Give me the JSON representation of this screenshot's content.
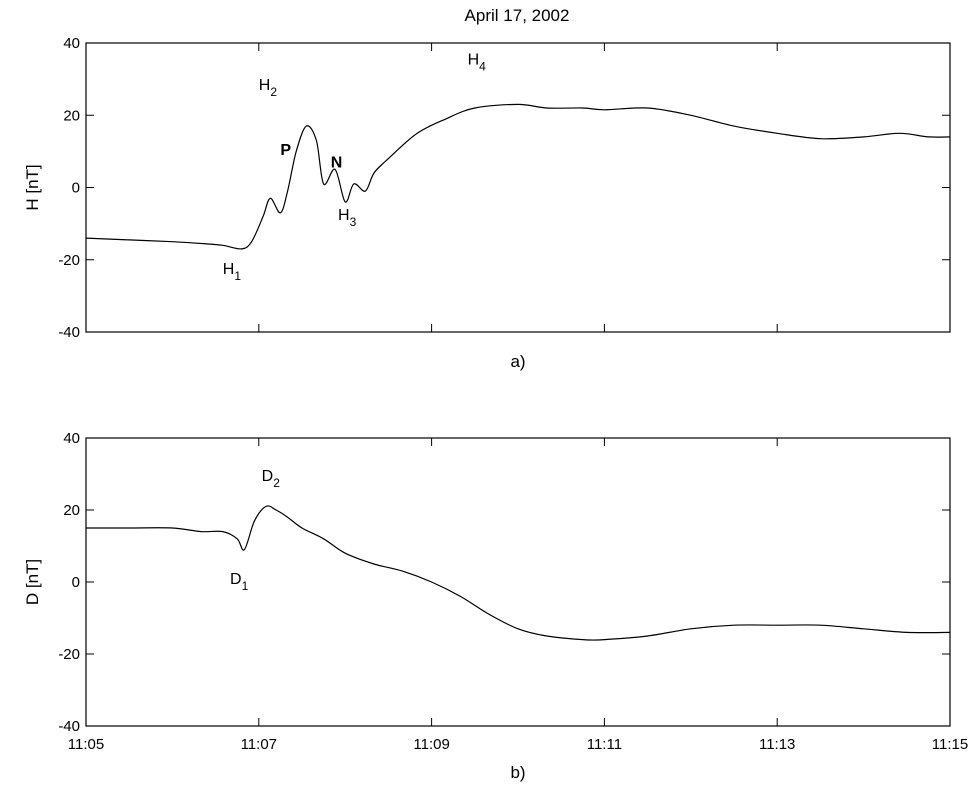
{
  "figure": {
    "title": "April 17, 2002"
  },
  "chart_data": [
    {
      "type": "line",
      "panel_label": "a)",
      "ylabel": "H [nT]",
      "ylim": [
        -40,
        40
      ],
      "yticks": [
        "40",
        "20",
        "0",
        "-20",
        "-40"
      ],
      "ytick_values": [
        40,
        20,
        0,
        -20,
        -40
      ],
      "xlim": [
        "11:05",
        "11:15"
      ],
      "xticks": [
        "11:05",
        "11:07",
        "11:09",
        "11:11",
        "11:13",
        "11:15"
      ],
      "x_tick_labels_shown": false,
      "grid": false,
      "series": [
        {
          "x": [
            "11:05:00",
            "11:05:30",
            "11:06:00",
            "11:06:20",
            "11:06:35",
            "11:06:48",
            "11:06:55",
            "11:07:03",
            "11:07:08",
            "11:07:15",
            "11:07:20",
            "11:07:26",
            "11:07:33",
            "11:07:40",
            "11:07:45",
            "11:07:53",
            "11:08:00",
            "11:08:06",
            "11:08:14",
            "11:08:20",
            "11:08:30",
            "11:08:50",
            "11:09:10",
            "11:09:30",
            "11:10:00",
            "11:10:20",
            "11:10:45",
            "11:11:00",
            "11:11:30",
            "11:12:00",
            "11:12:30",
            "11:13:00",
            "11:13:30",
            "11:14:00",
            "11:14:25",
            "11:14:45",
            "11:15:00"
          ],
          "y": [
            -14,
            -14.5,
            -15,
            -15.5,
            -16,
            -17,
            -15,
            -8,
            -3,
            -7,
            -1,
            10,
            17,
            13,
            1,
            5,
            -4,
            1,
            -1,
            4,
            8,
            15,
            19,
            22,
            23,
            22,
            22,
            21.5,
            22,
            20,
            17,
            15,
            13.5,
            14,
            15,
            14,
            14
          ]
        }
      ],
      "annotations": [
        {
          "base": "H",
          "sub": "1",
          "x": "11:06:35",
          "y": -24
        },
        {
          "base": "H",
          "sub": "2",
          "x": "11:07:00",
          "y": 27
        },
        {
          "base": "H",
          "sub": "3",
          "x": "11:07:55",
          "y": -9
        },
        {
          "base": "H",
          "sub": "4",
          "x": "11:09:25",
          "y": 34
        },
        {
          "base": "P",
          "sub": "",
          "x": "11:07:15",
          "y": 9,
          "bold": true
        },
        {
          "base": "N",
          "sub": "",
          "x": "11:07:50",
          "y": 5.5,
          "bold": true
        }
      ]
    },
    {
      "type": "line",
      "panel_label": "b)",
      "ylabel": "D [nT]",
      "ylim": [
        -40,
        40
      ],
      "yticks": [
        "40",
        "20",
        "0",
        "-20",
        "-40"
      ],
      "ytick_values": [
        40,
        20,
        0,
        -20,
        -40
      ],
      "xlim": [
        "11:05",
        "11:15"
      ],
      "xticks": [
        "11:05",
        "11:07",
        "11:09",
        "11:11",
        "11:13",
        "11:15"
      ],
      "x_tick_labels_shown": true,
      "grid": false,
      "series": [
        {
          "x": [
            "11:05:00",
            "11:05:30",
            "11:06:00",
            "11:06:20",
            "11:06:35",
            "11:06:45",
            "11:06:50",
            "11:06:57",
            "11:07:05",
            "11:07:12",
            "11:07:20",
            "11:07:30",
            "11:07:45",
            "11:08:00",
            "11:08:20",
            "11:08:40",
            "11:09:00",
            "11:09:20",
            "11:09:40",
            "11:10:00",
            "11:10:20",
            "11:10:45",
            "11:11:00",
            "11:11:30",
            "11:12:00",
            "11:12:30",
            "11:13:00",
            "11:13:30",
            "11:14:00",
            "11:14:30",
            "11:15:00"
          ],
          "y": [
            15,
            15,
            15,
            14,
            14,
            12,
            9,
            17,
            21,
            20,
            18,
            15,
            12,
            8,
            5,
            3,
            0,
            -4,
            -9,
            -13,
            -15,
            -16,
            -16,
            -15,
            -13,
            -12,
            -12,
            -12,
            -13,
            -14,
            -14
          ]
        }
      ],
      "annotations": [
        {
          "base": "D",
          "sub": "1",
          "x": "11:06:40",
          "y": -0.5
        },
        {
          "base": "D",
          "sub": "2",
          "x": "11:07:02",
          "y": 28
        }
      ]
    }
  ]
}
